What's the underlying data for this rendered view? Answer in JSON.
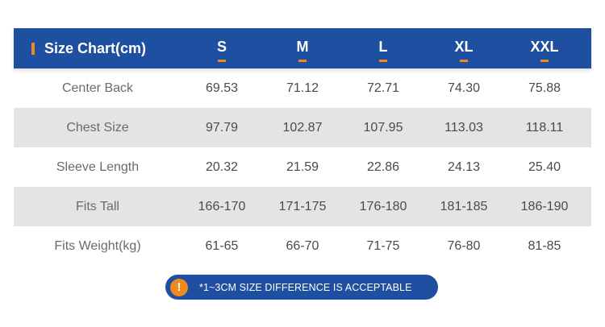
{
  "header": {
    "title": "Size Chart(cm)",
    "sizes": [
      "S",
      "M",
      "L",
      "XL",
      "XXL"
    ]
  },
  "rows": [
    {
      "name": "Center Back",
      "values": [
        "69.53",
        "71.12",
        "72.71",
        "74.30",
        "75.88"
      ]
    },
    {
      "name": "Chest Size",
      "values": [
        "97.79",
        "102.87",
        "107.95",
        "113.03",
        "118.11"
      ]
    },
    {
      "name": "Sleeve Length",
      "values": [
        "20.32",
        "21.59",
        "22.86",
        "24.13",
        "25.40"
      ]
    },
    {
      "name": "Fits Tall",
      "values": [
        "166-170",
        "171-175",
        "176-180",
        "181-185",
        "186-190"
      ]
    },
    {
      "name": "Fits Weight(kg)",
      "values": [
        "61-65",
        "66-70",
        "71-75",
        "76-80",
        "81-85"
      ]
    }
  ],
  "note": {
    "icon": "exclamation-icon",
    "icon_glyph": "!",
    "text": "*1~3CM SIZE DIFFERENCE IS ACCEPTABLE"
  },
  "colors": {
    "header_bg": "#1f4fa0",
    "accent": "#f08a1c",
    "row_shade": "#e4e4e4"
  }
}
